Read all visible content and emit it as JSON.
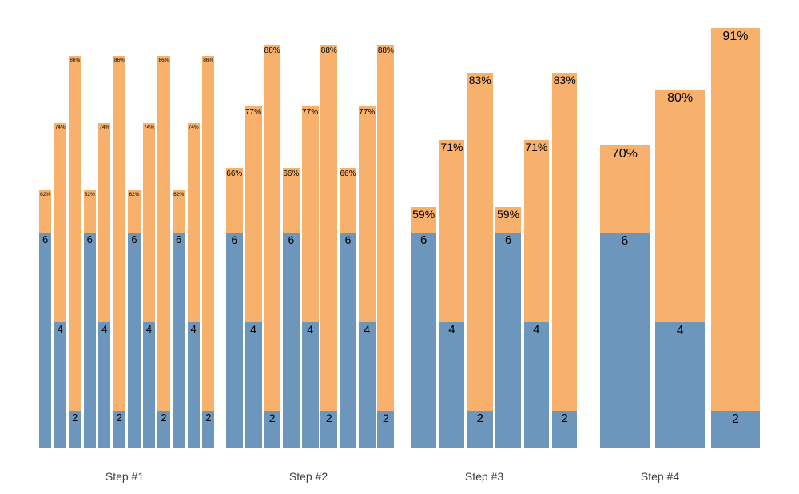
{
  "chart_data": {
    "type": "bar",
    "subtype": "stacked-bars-aggregation-steps",
    "title": "",
    "grid": false,
    "axes_visible": false,
    "legend": null,
    "background": "#ffffff",
    "colors": {
      "blue_segment": "#6c96bb",
      "orange_segment": "#f7b16c",
      "bar_label": "#000000",
      "group_label": "#3f3f3f"
    },
    "segment_value_labels": [
      6,
      4,
      2
    ],
    "groups": [
      {
        "label": "Step #1",
        "bars": [
          {
            "value": 6,
            "percent": 62
          },
          {
            "value": 4,
            "percent": 74
          },
          {
            "value": 2,
            "percent": 86
          },
          {
            "value": 6,
            "percent": 62
          },
          {
            "value": 4,
            "percent": 74
          },
          {
            "value": 2,
            "percent": 86
          },
          {
            "value": 6,
            "percent": 62
          },
          {
            "value": 4,
            "percent": 74
          },
          {
            "value": 2,
            "percent": 86
          },
          {
            "value": 6,
            "percent": 62
          },
          {
            "value": 4,
            "percent": 74
          },
          {
            "value": 2,
            "percent": 86
          }
        ]
      },
      {
        "label": "Step #2",
        "bars": [
          {
            "value": 6,
            "percent": 66
          },
          {
            "value": 4,
            "percent": 77
          },
          {
            "value": 2,
            "percent": 88
          },
          {
            "value": 6,
            "percent": 66
          },
          {
            "value": 4,
            "percent": 77
          },
          {
            "value": 2,
            "percent": 88
          },
          {
            "value": 6,
            "percent": 66
          },
          {
            "value": 4,
            "percent": 77
          },
          {
            "value": 2,
            "percent": 88
          }
        ]
      },
      {
        "label": "Step #3",
        "bars": [
          {
            "value": 6,
            "percent": 59
          },
          {
            "value": 4,
            "percent": 71
          },
          {
            "value": 2,
            "percent": 83
          },
          {
            "value": 6,
            "percent": 59
          },
          {
            "value": 4,
            "percent": 71
          },
          {
            "value": 2,
            "percent": 83
          }
        ]
      },
      {
        "label": "Step #4",
        "bars": [
          {
            "value": 6,
            "percent": 70
          },
          {
            "value": 4,
            "percent": 80
          },
          {
            "value": 2,
            "percent": 91
          }
        ]
      }
    ]
  }
}
